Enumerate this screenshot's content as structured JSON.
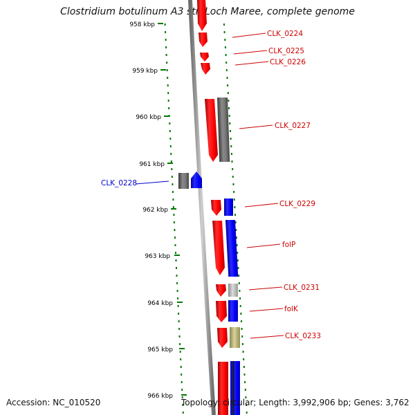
{
  "title": "Clostridium botulinum A3 str. Loch Maree, complete genome",
  "footer": {
    "accession": "Accession: NC_010520",
    "info": "Topology: circular; Length: 3,992,906 bp; Genes: 3,762"
  },
  "colors": {
    "forward": "#ff0000",
    "reverse": "#0000ff",
    "other": "#777777",
    "label_red": "#cc0000",
    "label_blue": "#0000cc",
    "tick": "#006600"
  },
  "scale_labels": [
    "958 kbp",
    "959 kbp",
    "960 kbp",
    "961 kbp",
    "962 kbp",
    "963 kbp",
    "964 kbp",
    "965 kbp",
    "966 kbp"
  ],
  "gene_labels": [
    {
      "text": "CLK_0224",
      "color": "red"
    },
    {
      "text": "CLK_0225",
      "color": "red"
    },
    {
      "text": "CLK_0226",
      "color": "red"
    },
    {
      "text": "CLK_0227",
      "color": "red"
    },
    {
      "text": "CLK_0228",
      "color": "blue"
    },
    {
      "text": "CLK_0229",
      "color": "red"
    },
    {
      "text": "folP",
      "color": "red"
    },
    {
      "text": "CLK_0231",
      "color": "red"
    },
    {
      "text": "folK",
      "color": "red"
    },
    {
      "text": "CLK_0233",
      "color": "red"
    }
  ]
}
